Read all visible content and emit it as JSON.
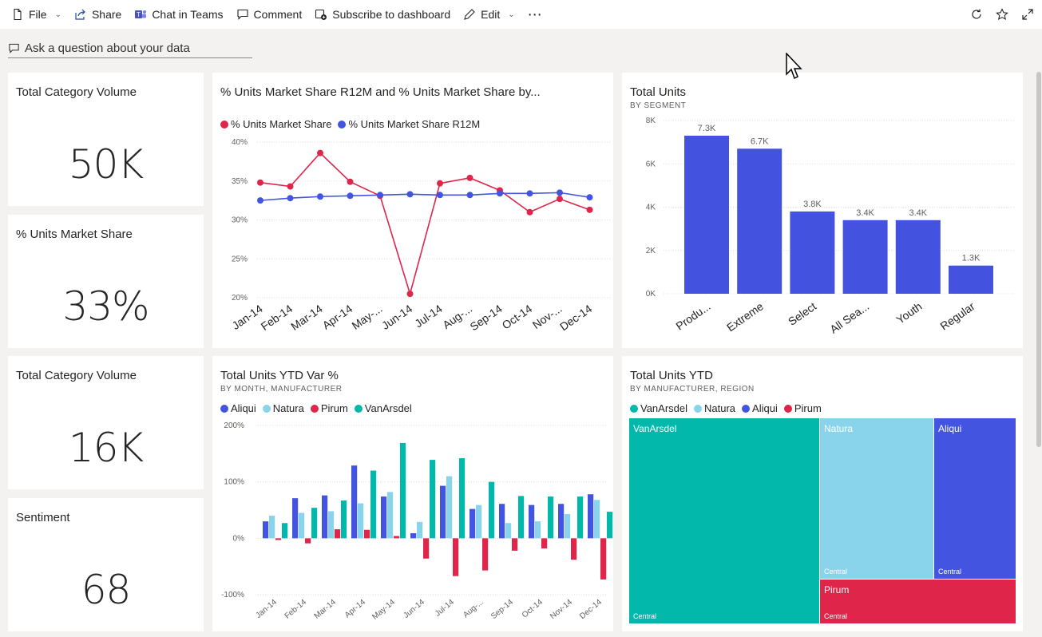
{
  "toolbar": {
    "file": "File",
    "share": "Share",
    "chat": "Chat in Teams",
    "comment": "Comment",
    "subscribe": "Subscribe to dashboard",
    "edit": "Edit",
    "more": "⋯"
  },
  "qa": {
    "placeholder": "Ask a question about your data"
  },
  "kpis": [
    {
      "title": "Total Category Volume",
      "value": "50K"
    },
    {
      "title": "% Units Market Share",
      "value": "33%"
    },
    {
      "title": "Total Category Volume",
      "value": "16K"
    },
    {
      "title": "Sentiment",
      "value": "68"
    }
  ],
  "line_tile": {
    "title": "% Units Market Share R12M and % Units Market Share by...",
    "legend": [
      "% Units Market Share",
      "% Units Market Share R12M"
    ]
  },
  "bar_tile": {
    "title": "Total Units",
    "subtitle": "BY SEGMENT"
  },
  "clustered_tile": {
    "title": "Total Units YTD Var %",
    "subtitle": "BY MONTH, MANUFACTURER",
    "legend": [
      "Aliqui",
      "Natura",
      "Pirum",
      "VanArsdel"
    ]
  },
  "treemap_tile": {
    "title": "Total Units YTD",
    "subtitle": "BY MANUFACTURER, REGION",
    "legend": [
      "VanArsdel",
      "Natura",
      "Aliqui",
      "Pirum"
    ],
    "cells": [
      {
        "name": "VanArsdel",
        "region": "Central"
      },
      {
        "name": "Natura",
        "region": "Central"
      },
      {
        "name": "Aliqui",
        "region": "Central"
      },
      {
        "name": "Pirum",
        "region": "Central"
      }
    ]
  },
  "colors": {
    "red": "#e0254a",
    "blue": "#4354e0",
    "lightblue": "#8ad4eb",
    "teal": "#01b8aa",
    "bar": "#4353e0"
  },
  "chart_data": [
    {
      "type": "line",
      "categories": [
        "Jan-14",
        "Feb-14",
        "Mar-14",
        "Apr-14",
        "May-...",
        "Jun-14",
        "Jul-14",
        "Aug-...",
        "Sep-14",
        "Oct-14",
        "Nov-...",
        "Dec-14"
      ],
      "series": [
        {
          "name": "% Units Market Share",
          "values": [
            34.8,
            34.3,
            38.6,
            34.9,
            33.1,
            20.5,
            34.7,
            35.4,
            33.8,
            31.0,
            32.7,
            31.3
          ]
        },
        {
          "name": "% Units Market Share R12M",
          "values": [
            32.5,
            32.8,
            33.0,
            33.1,
            33.2,
            33.3,
            33.2,
            33.2,
            33.4,
            33.4,
            33.5,
            32.9
          ]
        }
      ],
      "yticks": [
        "40%",
        "35%",
        "30%",
        "25%",
        "20%"
      ],
      "ylim": [
        20,
        40
      ]
    },
    {
      "type": "bar",
      "categories": [
        "Produ...",
        "Extreme",
        "Select",
        "All Sea...",
        "Youth",
        "Regular"
      ],
      "values": [
        7300,
        6700,
        3800,
        3400,
        3400,
        1300
      ],
      "data_labels": [
        "7.3K",
        "6.7K",
        "3.8K",
        "3.4K",
        "3.4K",
        "1.3K"
      ],
      "yticks": [
        "8K",
        "6K",
        "4K",
        "2K",
        "0K"
      ],
      "ylim": [
        0,
        8000
      ]
    },
    {
      "type": "bar",
      "categories": [
        "Jan-14",
        "Feb-14",
        "Mar-14",
        "Apr-14",
        "May-14",
        "Jun-14",
        "Jul-14",
        "Aug-...",
        "Sep-14",
        "Oct-14",
        "Nov-14",
        "Dec-14"
      ],
      "series": [
        {
          "name": "Aliqui",
          "values": [
            30,
            71,
            76,
            129,
            74,
            9,
            93,
            52,
            61,
            59,
            61,
            78
          ]
        },
        {
          "name": "Natura",
          "values": [
            40,
            45,
            48,
            62,
            82,
            29,
            110,
            59,
            27,
            30,
            43,
            68
          ]
        },
        {
          "name": "Pirum",
          "values": [
            -3,
            -9,
            16,
            15,
            4,
            -36,
            -67,
            -57,
            -22,
            -18,
            -38,
            -73
          ]
        },
        {
          "name": "VanArsdel",
          "values": [
            27,
            54,
            67,
            120,
            169,
            139,
            142,
            100,
            75,
            74,
            74,
            47
          ]
        }
      ],
      "yticks": [
        "200%",
        "100%",
        "0%",
        "-100%"
      ],
      "ylim": [
        -100,
        200
      ]
    },
    {
      "type": "treemap",
      "items": [
        {
          "name": "VanArsdel",
          "region": "Central"
        },
        {
          "name": "Natura",
          "region": "Central"
        },
        {
          "name": "Aliqui",
          "region": "Central"
        },
        {
          "name": "Pirum",
          "region": "Central"
        }
      ]
    }
  ]
}
